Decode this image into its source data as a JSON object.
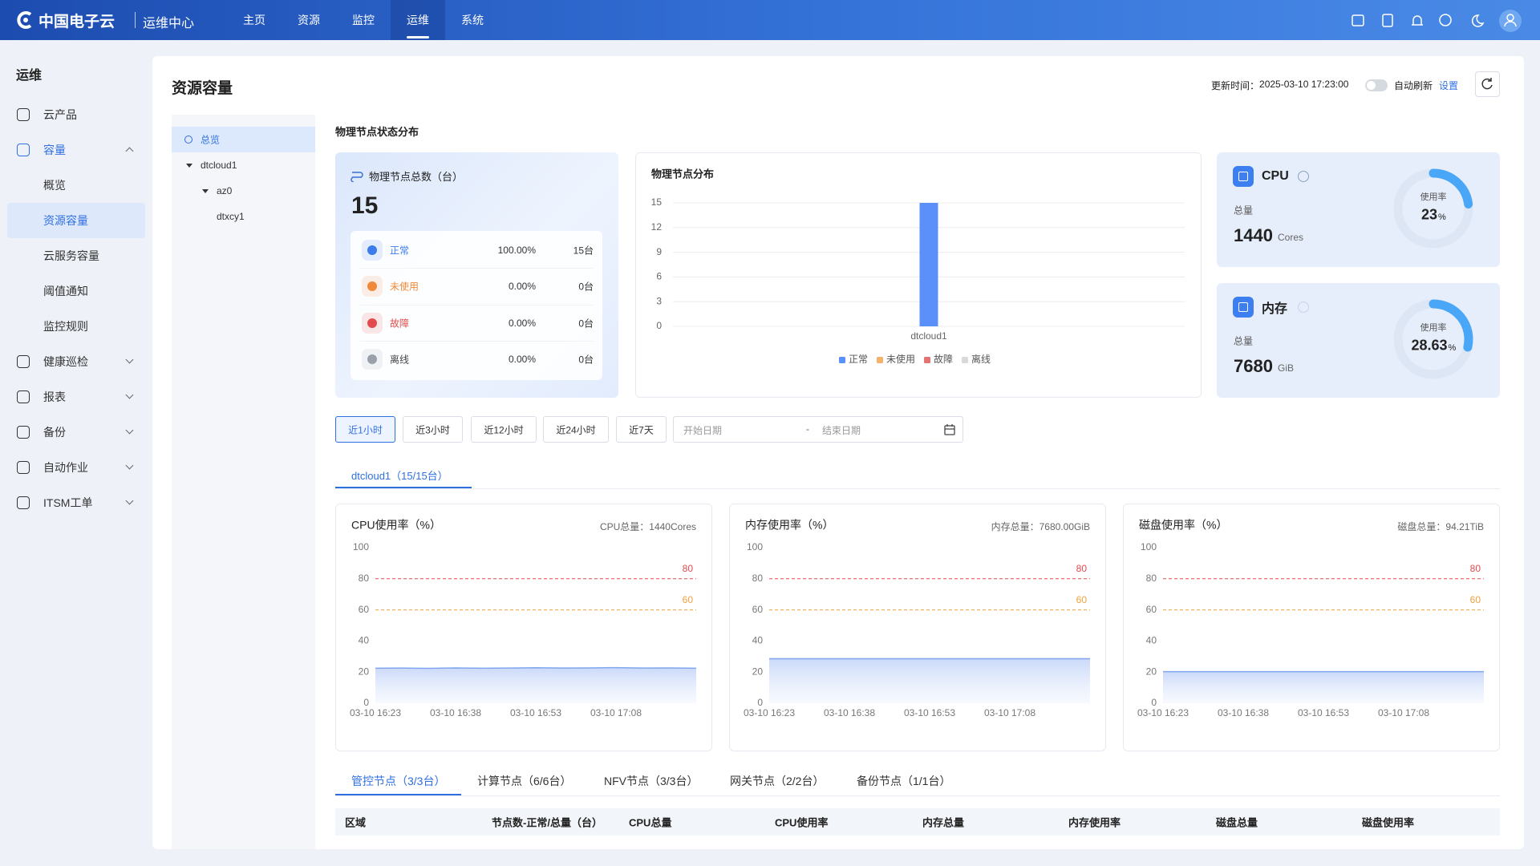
{
  "header": {
    "brand": "中国电子云",
    "product": "运维中心",
    "nav": [
      "主页",
      "资源",
      "监控",
      "运维",
      "系统"
    ],
    "active_nav": 3
  },
  "sidebar": {
    "title": "运维",
    "items": [
      {
        "label": "云产品",
        "expandable": false
      },
      {
        "label": "容量",
        "expandable": true,
        "expanded": true,
        "children": [
          "概览",
          "资源容量",
          "云服务容量",
          "阈值通知",
          "监控规则"
        ]
      },
      {
        "label": "健康巡检",
        "expandable": true
      },
      {
        "label": "报表",
        "expandable": true
      },
      {
        "label": "备份",
        "expandable": true
      },
      {
        "label": "自动作业",
        "expandable": true
      },
      {
        "label": "ITSM工单",
        "expandable": true
      }
    ],
    "active_child": 1
  },
  "page": {
    "title": "资源容量",
    "update_label": "更新时间：",
    "update_time": "2025-03-10 17:23:00",
    "auto_refresh": "自动刷新",
    "auto_refresh_on": false,
    "settings": "设置"
  },
  "tree": {
    "nodes": [
      {
        "label": "总览",
        "level": 0,
        "kind": "root"
      },
      {
        "label": "dtcloud1",
        "level": 0,
        "kind": "group"
      },
      {
        "label": "az0",
        "level": 1,
        "kind": "group"
      },
      {
        "label": "dtxcy1",
        "level": 2,
        "kind": "leaf"
      }
    ],
    "selected": 0
  },
  "overview": {
    "title": "物理节点状态分布",
    "total_label": "物理节点总数（台）",
    "total": 15,
    "rows": [
      {
        "status": "正常",
        "percent": "100.00%",
        "count": "15台",
        "color": "#3b7ce9"
      },
      {
        "status": "未使用",
        "percent": "0.00%",
        "count": "0台",
        "color": "#f08a3a"
      },
      {
        "status": "故障",
        "percent": "0.00%",
        "count": "0台",
        "color": "#e24c4c"
      },
      {
        "status": "离线",
        "percent": "0.00%",
        "count": "0台",
        "color": "#9aa0aa"
      }
    ]
  },
  "resources": [
    {
      "name": "CPU",
      "total_label": "总量",
      "total": 1440,
      "unit": "Cores",
      "usage_label": "使用率",
      "usage": 23,
      "usage_unit": "%"
    },
    {
      "name": "内存",
      "total_label": "总量",
      "total": 7680,
      "unit": "GiB",
      "usage_label": "使用率",
      "usage": 28.63,
      "usage_unit": "%"
    }
  ],
  "filters": {
    "ranges": [
      "近1小时",
      "近3小时",
      "近12小时",
      "近24小时",
      "近7天"
    ],
    "active": 0,
    "start_placeholder": "开始日期",
    "separator": "-",
    "end_placeholder": "结束日期"
  },
  "cluster_tab": "dtcloud1（15/15台）",
  "chart_data": [
    {
      "type": "bar",
      "title": "物理节点分布",
      "categories": [
        "dtcloud1"
      ],
      "stacked": true,
      "series": [
        {
          "name": "正常",
          "color": "#5b8ff9",
          "values": [
            15
          ]
        },
        {
          "name": "未使用",
          "color": "#f6b26b",
          "values": [
            0
          ]
        },
        {
          "name": "故障",
          "color": "#e57373",
          "values": [
            0
          ]
        },
        {
          "name": "离线",
          "color": "#d9d9d9",
          "values": [
            0
          ]
        }
      ],
      "ylim": [
        0,
        15
      ],
      "yticks": [
        0,
        3,
        6,
        9,
        12,
        15
      ],
      "grid": true,
      "legend": "bottom"
    },
    {
      "type": "line",
      "title": "CPU使用率（%）",
      "note": "CPU总量：1440Cores",
      "categories": [
        "03-10 16:23",
        null,
        null,
        "03-10 16:38",
        null,
        null,
        "03-10 16:53",
        null,
        null,
        "03-10 17:08",
        null,
        null,
        null
      ],
      "values": [
        22.5,
        22.6,
        22.4,
        22.7,
        22.5,
        22.6,
        22.8,
        22.6,
        22.7,
        22.9,
        22.6,
        22.7,
        22.5
      ],
      "color": "#7fa6ee",
      "thresholds": [
        {
          "value": 80,
          "color": "#e5484d"
        },
        {
          "value": 60,
          "color": "#f0a13c"
        }
      ],
      "ylim": [
        0,
        100
      ],
      "yticks": [
        0,
        20,
        40,
        60,
        80,
        100
      ],
      "grid": false
    },
    {
      "type": "line",
      "title": "内存使用率（%）",
      "note": "内存总量：7680.00GiB",
      "categories": [
        "03-10 16:23",
        null,
        null,
        "03-10 16:38",
        null,
        null,
        "03-10 16:53",
        null,
        null,
        "03-10 17:08",
        null,
        null,
        null
      ],
      "values": [
        28.6,
        28.6,
        28.6,
        28.6,
        28.6,
        28.6,
        28.6,
        28.6,
        28.6,
        28.6,
        28.6,
        28.6,
        28.6
      ],
      "color": "#7fa6ee",
      "thresholds": [
        {
          "value": 80,
          "color": "#e5484d"
        },
        {
          "value": 60,
          "color": "#f0a13c"
        }
      ],
      "ylim": [
        0,
        100
      ],
      "yticks": [
        0,
        20,
        40,
        60,
        80,
        100
      ],
      "grid": false
    },
    {
      "type": "line",
      "title": "磁盘使用率（%）",
      "note": "磁盘总量：94.21TiB",
      "categories": [
        "03-10 16:23",
        null,
        null,
        "03-10 16:38",
        null,
        null,
        "03-10 16:53",
        null,
        null,
        "03-10 17:08",
        null,
        null,
        null
      ],
      "values": [
        20.3,
        20.3,
        20.3,
        20.3,
        20.3,
        20.3,
        20.3,
        20.3,
        20.3,
        20.3,
        20.3,
        20.3,
        20.3
      ],
      "color": "#7fa6ee",
      "thresholds": [
        {
          "value": 80,
          "color": "#e5484d"
        },
        {
          "value": 60,
          "color": "#f0a13c"
        }
      ],
      "ylim": [
        0,
        100
      ],
      "yticks": [
        0,
        20,
        40,
        60,
        80,
        100
      ],
      "grid": false
    }
  ],
  "node_tabs": {
    "tabs": [
      "管控节点（3/3台）",
      "计算节点（6/6台）",
      "NFV节点（3/3台）",
      "网关节点（2/2台）",
      "备份节点（1/1台）"
    ],
    "active": 0
  },
  "table": {
    "columns": [
      "区域",
      "节点数-正常/总量（台）",
      "CPU总量",
      "CPU使用率",
      "内存总量",
      "内存使用率",
      "磁盘总量",
      "磁盘使用率"
    ]
  }
}
